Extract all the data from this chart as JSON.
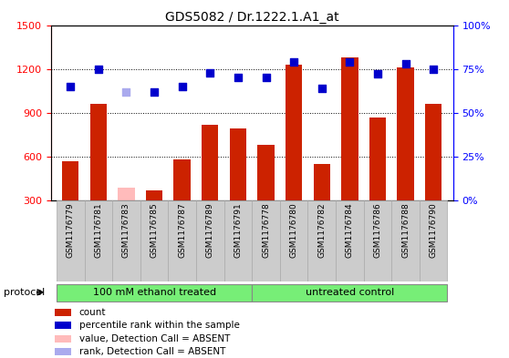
{
  "title": "GDS5082 / Dr.1222.1.A1_at",
  "samples": [
    "GSM1176779",
    "GSM1176781",
    "GSM1176783",
    "GSM1176785",
    "GSM1176787",
    "GSM1176789",
    "GSM1176791",
    "GSM1176778",
    "GSM1176780",
    "GSM1176782",
    "GSM1176784",
    "GSM1176786",
    "GSM1176788",
    "GSM1176790"
  ],
  "bar_values": [
    570,
    960,
    390,
    370,
    580,
    820,
    790,
    680,
    1230,
    550,
    1280,
    870,
    1210,
    960
  ],
  "bar_absent": [
    false,
    false,
    true,
    false,
    false,
    false,
    false,
    false,
    false,
    false,
    false,
    false,
    false,
    false
  ],
  "dot_values": [
    65,
    75,
    62,
    62,
    65,
    73,
    70,
    70,
    79,
    64,
    79,
    72,
    78,
    75
  ],
  "dot_absent": [
    false,
    false,
    true,
    false,
    false,
    false,
    false,
    false,
    false,
    false,
    false,
    false,
    false,
    false
  ],
  "bar_color": "#cc2200",
  "bar_absent_color": "#ffbbbb",
  "dot_color": "#0000cc",
  "dot_absent_color": "#aaaaee",
  "group1_label": "100 mM ethanol treated",
  "group2_label": "untreated control",
  "group1_count": 7,
  "group2_count": 7,
  "group_color": "#77ee77",
  "protocol_label": "protocol",
  "ylim_left": [
    300,
    1500
  ],
  "ylim_right": [
    0,
    100
  ],
  "yticks_left": [
    300,
    600,
    900,
    1200,
    1500
  ],
  "yticks_right": [
    0,
    25,
    50,
    75,
    100
  ],
  "ytick_labels_right": [
    "0%",
    "25%",
    "50%",
    "75%",
    "100%"
  ],
  "legend_items": [
    "count",
    "percentile rank within the sample",
    "value, Detection Call = ABSENT",
    "rank, Detection Call = ABSENT"
  ],
  "legend_colors": [
    "#cc2200",
    "#0000cc",
    "#ffbbbb",
    "#aaaaee"
  ]
}
